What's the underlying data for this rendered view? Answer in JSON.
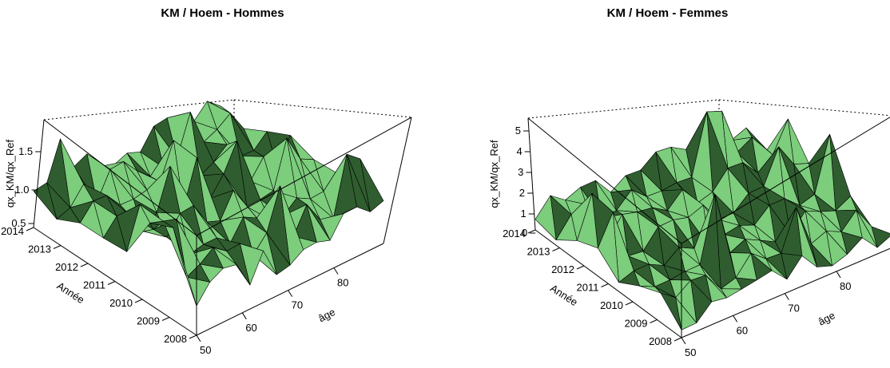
{
  "chart_data": [
    {
      "type": "surface3d",
      "title": "KM / Hoem - Hommes",
      "xlabel": "âge",
      "ylabel": "Année",
      "zlabel": "qx_KM/qx_Ref",
      "x_ticks": [
        "50",
        "60",
        "70",
        "80"
      ],
      "y_ticks": [
        "2008",
        "2009",
        "2010",
        "2011",
        "2012",
        "2013",
        "2014"
      ],
      "z_ticks": [
        "0.5",
        "1.0",
        "1.5"
      ],
      "xlim": [
        50,
        85
      ],
      "ylim": [
        2008,
        2014
      ],
      "zlim": [
        0.4,
        2.0
      ],
      "value_range": [
        0.4,
        2.0
      ],
      "surface_color": "#7ccd7c",
      "surface_shadow_color": "#2f5d2f"
    },
    {
      "type": "surface3d",
      "title": "KM / Hoem - Femmes",
      "xlabel": "âge",
      "ylabel": "Année",
      "zlabel": "qx_KM/qx_Ref",
      "x_ticks": [
        "50",
        "60",
        "70",
        "80"
      ],
      "y_ticks": [
        "2008",
        "2009",
        "2010",
        "2011",
        "2012",
        "2013",
        "2014"
      ],
      "z_ticks": [
        "0",
        "1",
        "2",
        "3",
        "4",
        "5"
      ],
      "xlim": [
        50,
        85
      ],
      "ylim": [
        2008,
        2014
      ],
      "zlim": [
        0,
        5.5
      ],
      "value_range": [
        0,
        5.5
      ],
      "surface_color": "#7ccd7c",
      "surface_shadow_color": "#2f5d2f"
    }
  ]
}
